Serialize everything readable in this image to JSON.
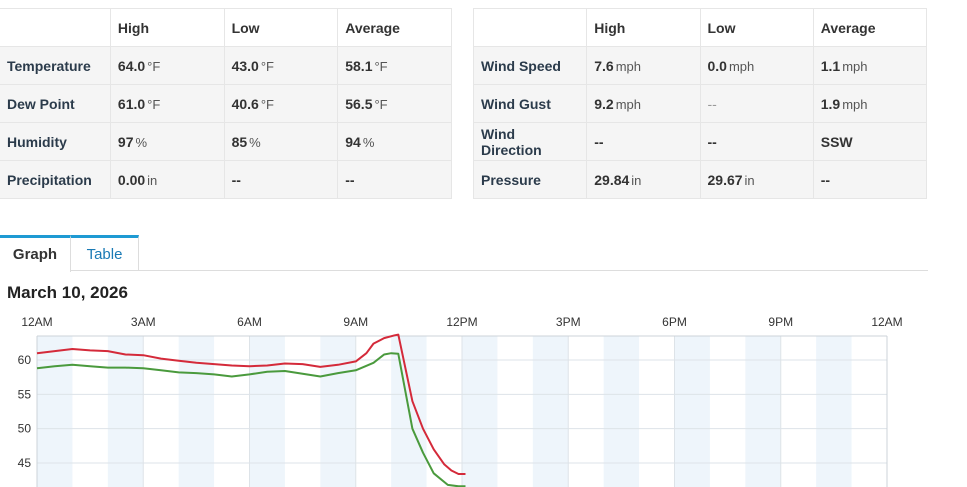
{
  "left_table": {
    "headers": [
      "",
      "High",
      "Low",
      "Average"
    ],
    "rows": [
      {
        "label": "Temperature",
        "cells": [
          {
            "v": "64.0",
            "u": "°F"
          },
          {
            "v": "43.0",
            "u": "°F"
          },
          {
            "v": "58.1",
            "u": "°F"
          }
        ]
      },
      {
        "label": "Dew Point",
        "cells": [
          {
            "v": "61.0",
            "u": "°F"
          },
          {
            "v": "40.6",
            "u": "°F"
          },
          {
            "v": "56.5",
            "u": "°F"
          }
        ]
      },
      {
        "label": "Humidity",
        "cells": [
          {
            "v": "97",
            "u": "%"
          },
          {
            "v": "85",
            "u": "%"
          },
          {
            "v": "94",
            "u": "%"
          }
        ]
      },
      {
        "label": "Precipitation",
        "cells": [
          {
            "v": "0.00",
            "u": "in"
          },
          {
            "v": "--",
            "u": ""
          },
          {
            "v": "--",
            "u": ""
          }
        ]
      }
    ]
  },
  "right_table": {
    "headers": [
      "",
      "High",
      "Low",
      "Average"
    ],
    "rows": [
      {
        "label": "Wind Speed",
        "cells": [
          {
            "v": "7.6",
            "u": "mph"
          },
          {
            "v": "0.0",
            "u": "mph"
          },
          {
            "v": "1.1",
            "u": "mph"
          }
        ]
      },
      {
        "label": "Wind Gust",
        "cells": [
          {
            "v": "9.2",
            "u": "mph"
          },
          {
            "v": "--",
            "u": "",
            "light": true
          },
          {
            "v": "1.9",
            "u": "mph"
          }
        ]
      },
      {
        "label": "Wind Direction",
        "cells": [
          {
            "v": "--",
            "u": ""
          },
          {
            "v": "--",
            "u": ""
          },
          {
            "v": "SSW",
            "u": ""
          }
        ]
      },
      {
        "label": "Pressure",
        "cells": [
          {
            "v": "29.84",
            "u": "in"
          },
          {
            "v": "29.67",
            "u": "in"
          },
          {
            "v": "--",
            "u": ""
          }
        ]
      }
    ]
  },
  "tabs": {
    "graph": "Graph",
    "table": "Table"
  },
  "chart_title": "March 10, 2026",
  "chart_data": {
    "type": "line",
    "title": "March 10, 2026",
    "x_ticks": [
      "12AM",
      "3AM",
      "6AM",
      "9AM",
      "12PM",
      "3PM",
      "6PM",
      "9PM",
      "12AM"
    ],
    "y_ticks": [
      60,
      55,
      50,
      45
    ],
    "ylim": [
      41.5,
      63.5
    ],
    "xlim_hours": [
      0,
      24
    ],
    "grid": true,
    "series": [
      {
        "color": "#d42a3a",
        "points": [
          [
            0,
            61
          ],
          [
            0.5,
            61.3
          ],
          [
            1,
            61.6
          ],
          [
            1.5,
            61.4
          ],
          [
            2,
            61.3
          ],
          [
            2.5,
            60.8
          ],
          [
            3,
            60.7
          ],
          [
            3.5,
            60.2
          ],
          [
            4,
            59.9
          ],
          [
            4.5,
            59.6
          ],
          [
            5,
            59.4
          ],
          [
            5.5,
            59.2
          ],
          [
            6,
            59.1
          ],
          [
            6.5,
            59.2
          ],
          [
            7,
            59.5
          ],
          [
            7.5,
            59.4
          ],
          [
            8,
            59
          ],
          [
            8.5,
            59.3
          ],
          [
            9,
            59.8
          ],
          [
            9.3,
            61
          ],
          [
            9.5,
            62.4
          ],
          [
            9.8,
            63.2
          ],
          [
            10.1,
            63.6
          ],
          [
            10.2,
            63.7
          ],
          [
            10.6,
            54
          ],
          [
            10.9,
            50
          ],
          [
            11.2,
            47
          ],
          [
            11.5,
            44.8
          ],
          [
            11.7,
            43.9
          ],
          [
            11.9,
            43.4
          ],
          [
            12.1,
            43.4
          ]
        ]
      },
      {
        "color": "#4a9a3d",
        "points": [
          [
            0,
            58.8
          ],
          [
            0.5,
            59.1
          ],
          [
            1,
            59.3
          ],
          [
            1.5,
            59.1
          ],
          [
            2,
            58.9
          ],
          [
            2.5,
            58.9
          ],
          [
            3,
            58.8
          ],
          [
            3.5,
            58.5
          ],
          [
            4,
            58.2
          ],
          [
            4.5,
            58.1
          ],
          [
            5,
            57.9
          ],
          [
            5.5,
            57.6
          ],
          [
            6,
            57.9
          ],
          [
            6.5,
            58.3
          ],
          [
            7,
            58.4
          ],
          [
            7.5,
            58
          ],
          [
            8,
            57.6
          ],
          [
            8.5,
            58.1
          ],
          [
            9,
            58.5
          ],
          [
            9.5,
            59.6
          ],
          [
            9.8,
            60.8
          ],
          [
            10,
            61.0
          ],
          [
            10.2,
            60.9
          ],
          [
            10.6,
            50
          ],
          [
            10.9,
            46.5
          ],
          [
            11.2,
            43.5
          ],
          [
            11.6,
            41.8
          ],
          [
            11.9,
            41.6
          ],
          [
            12.1,
            41.6
          ]
        ]
      }
    ]
  },
  "colors": {
    "accent_tab": "#1e9ad3",
    "link": "#1a7ab5",
    "band": "#eef5fb"
  }
}
